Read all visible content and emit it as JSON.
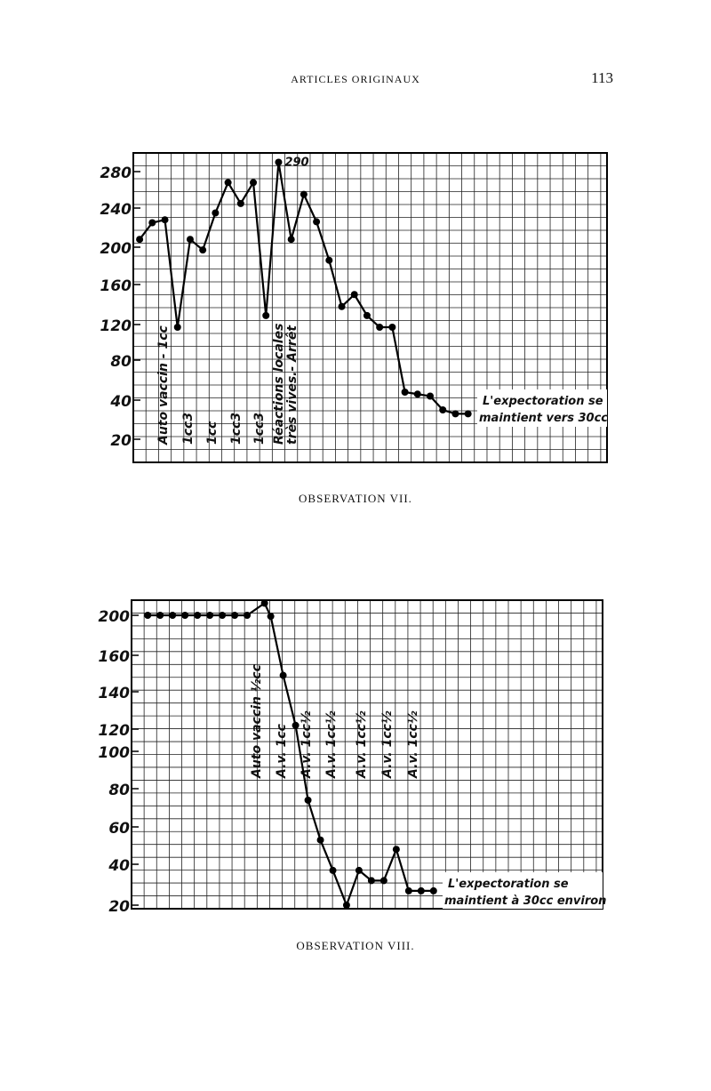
{
  "header": {
    "title": "ARTICLES ORIGINAUX",
    "page": "113"
  },
  "chart_data": [
    {
      "type": "line",
      "caption": "OBSERVATION VII.",
      "x": [
        1,
        2,
        3,
        4,
        5,
        6,
        7,
        8,
        9,
        10,
        11,
        12,
        13,
        14,
        15,
        16,
        17,
        18,
        19,
        20,
        21,
        22,
        23,
        24,
        25,
        26,
        27
      ],
      "values": [
        208,
        225,
        228,
        117,
        208,
        197,
        235,
        268,
        245,
        268,
        129,
        290,
        208,
        255,
        226,
        186,
        138,
        150,
        129,
        117,
        117,
        48,
        46,
        44,
        35,
        33,
        33
      ],
      "xlim": [
        0.5,
        38
      ],
      "ylim": [
        8,
        300
      ],
      "yticks": [
        280,
        240,
        200,
        160,
        120,
        80,
        40,
        20
      ],
      "annotations": [
        "Auto vaccin - 1cc",
        "1cc3",
        "1cc",
        "1cc3",
        "1cc3",
        "Réactions locales",
        "très vives.- Arrêt"
      ],
      "note": [
        "L'expectoration se",
        "maintient vers 30cc"
      ]
    },
    {
      "type": "line",
      "caption": "OBSERVATION VIII.",
      "x": [
        1,
        2,
        3,
        4,
        5,
        6,
        7,
        8,
        9,
        10.4,
        10.9,
        11.9,
        12.9,
        13.9,
        14.9,
        15.9,
        17,
        18,
        19,
        20,
        21,
        22,
        23,
        24
      ],
      "values": [
        200,
        200,
        200,
        200,
        200,
        200,
        200,
        200,
        200,
        212,
        199,
        149,
        122,
        74,
        53,
        37,
        20,
        37,
        32,
        32,
        48,
        27,
        27,
        27
      ],
      "xlim": [
        -0.3,
        37.6
      ],
      "ylim": [
        18,
        215
      ],
      "yticks": [
        200,
        160,
        140,
        120,
        100,
        80,
        60,
        40,
        20
      ],
      "annotations": [
        "Auto vaccin ½cc",
        "A.v. 1cc",
        "A.v. 1cc½",
        "A.v. 1cc½",
        "A.v. 1cc½",
        "A.v. 1cc½",
        "A.v. 1cc½"
      ],
      "note": [
        "L'expectoration se",
        "maintient à 30cc environ"
      ]
    }
  ]
}
